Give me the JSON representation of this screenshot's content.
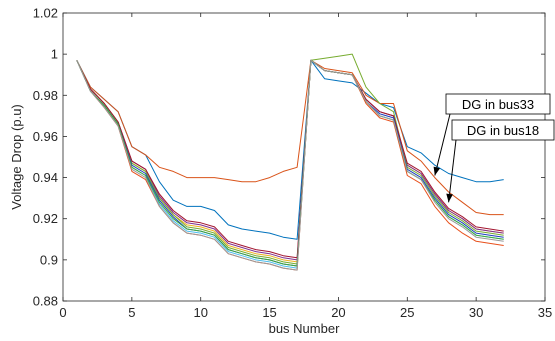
{
  "chart_data": {
    "type": "line",
    "title": "",
    "xlabel": "bus Number",
    "ylabel": "Voltage Drop (p.u)",
    "xlim": [
      0,
      35
    ],
    "ylim": [
      0.88,
      1.02
    ],
    "xticks": [
      0,
      5,
      10,
      15,
      20,
      25,
      30,
      35
    ],
    "xtick_labels": [
      "0",
      "5",
      "10",
      "15",
      "20",
      "25",
      "30",
      "35"
    ],
    "yticks": [
      0.88,
      0.9,
      0.92,
      0.94,
      0.96,
      0.98,
      1.0,
      1.02
    ],
    "ytick_labels": [
      "0.88",
      "0.9",
      "0.92",
      "0.94",
      "0.96",
      "0.98",
      "1",
      "1.02"
    ],
    "grid": false,
    "x": [
      1,
      2,
      3,
      4,
      5,
      6,
      7,
      8,
      9,
      10,
      11,
      12,
      13,
      14,
      15,
      16,
      17,
      18,
      19,
      20,
      21,
      22,
      23,
      24,
      25,
      26,
      27,
      28,
      29,
      30,
      31,
      32
    ],
    "series": [
      {
        "color": "#0072BD",
        "values": [
          0.997,
          0.984,
          0.978,
          0.972,
          0.955,
          0.951,
          0.938,
          0.929,
          0.926,
          0.926,
          0.924,
          0.917,
          0.915,
          0.914,
          0.913,
          0.911,
          0.91,
          0.997,
          0.988,
          0.987,
          0.986,
          0.981,
          0.976,
          0.974,
          0.955,
          0.952,
          0.946,
          0.942,
          0.94,
          0.938,
          0.938,
          0.939
        ]
      },
      {
        "color": "#D95319",
        "values": [
          0.997,
          0.984,
          0.978,
          0.972,
          0.955,
          0.951,
          0.945,
          0.943,
          0.94,
          0.94,
          0.94,
          0.939,
          0.938,
          0.938,
          0.94,
          0.943,
          0.945,
          0.997,
          0.993,
          0.992,
          0.991,
          0.98,
          0.976,
          0.976,
          0.953,
          0.948,
          0.94,
          0.933,
          0.928,
          0.923,
          0.922,
          0.922
        ]
      },
      {
        "color": "#EDB120",
        "values": [
          0.997,
          0.983,
          0.976,
          0.967,
          0.947,
          0.943,
          0.93,
          0.922,
          0.917,
          0.916,
          0.914,
          0.907,
          0.905,
          0.903,
          0.902,
          0.9,
          0.899,
          0.997,
          0.992,
          0.991,
          0.99,
          0.978,
          0.972,
          0.97,
          0.946,
          0.942,
          0.932,
          0.924,
          0.92,
          0.915,
          0.914,
          0.913
        ]
      },
      {
        "color": "#7E2F8E",
        "values": [
          0.997,
          0.983,
          0.976,
          0.967,
          0.948,
          0.944,
          0.931,
          0.923,
          0.918,
          0.917,
          0.915,
          0.908,
          0.906,
          0.904,
          0.903,
          0.901,
          0.9,
          0.997,
          0.992,
          0.991,
          0.99,
          0.978,
          0.972,
          0.97,
          0.946,
          0.942,
          0.932,
          0.924,
          0.92,
          0.915,
          0.914,
          0.913
        ]
      },
      {
        "color": "#77AC30",
        "values": [
          0.997,
          0.983,
          0.976,
          0.967,
          0.947,
          0.943,
          0.93,
          0.922,
          0.916,
          0.915,
          0.913,
          0.906,
          0.904,
          0.902,
          0.901,
          0.899,
          0.898,
          0.997,
          0.998,
          0.999,
          1.0,
          0.984,
          0.976,
          0.972,
          0.945,
          0.941,
          0.931,
          0.923,
          0.919,
          0.914,
          0.913,
          0.912
        ]
      },
      {
        "color": "#4DBEEE",
        "values": [
          0.997,
          0.982,
          0.975,
          0.966,
          0.945,
          0.941,
          0.927,
          0.919,
          0.914,
          0.913,
          0.911,
          0.904,
          0.902,
          0.9,
          0.899,
          0.897,
          0.896,
          0.997,
          0.992,
          0.991,
          0.99,
          0.977,
          0.97,
          0.968,
          0.943,
          0.939,
          0.929,
          0.921,
          0.917,
          0.912,
          0.911,
          0.91
        ]
      },
      {
        "color": "#A2142F",
        "values": [
          0.997,
          0.983,
          0.976,
          0.967,
          0.948,
          0.944,
          0.932,
          0.924,
          0.919,
          0.918,
          0.916,
          0.909,
          0.907,
          0.905,
          0.904,
          0.902,
          0.901,
          0.997,
          0.992,
          0.991,
          0.99,
          0.978,
          0.972,
          0.97,
          0.947,
          0.943,
          0.933,
          0.925,
          0.921,
          0.916,
          0.915,
          0.914
        ]
      },
      {
        "color": "#1F3FBF",
        "values": [
          0.997,
          0.982,
          0.975,
          0.966,
          0.946,
          0.942,
          0.929,
          0.921,
          0.915,
          0.914,
          0.912,
          0.905,
          0.903,
          0.901,
          0.9,
          0.898,
          0.897,
          0.997,
          0.992,
          0.991,
          0.99,
          0.977,
          0.971,
          0.969,
          0.944,
          0.94,
          0.93,
          0.922,
          0.918,
          0.913,
          0.912,
          0.911
        ]
      },
      {
        "color": "#E8501C",
        "values": [
          0.997,
          0.982,
          0.974,
          0.965,
          0.943,
          0.939,
          0.926,
          0.918,
          0.913,
          0.912,
          0.91,
          0.903,
          0.901,
          0.899,
          0.898,
          0.896,
          0.895,
          0.997,
          0.992,
          0.991,
          0.99,
          0.976,
          0.969,
          0.967,
          0.941,
          0.937,
          0.926,
          0.918,
          0.913,
          0.909,
          0.908,
          0.907
        ]
      },
      {
        "color": "#3CA83C",
        "values": [
          0.997,
          0.982,
          0.975,
          0.966,
          0.945,
          0.941,
          0.928,
          0.92,
          0.915,
          0.914,
          0.912,
          0.905,
          0.903,
          0.901,
          0.9,
          0.898,
          0.897,
          0.997,
          0.992,
          0.991,
          0.99,
          0.977,
          0.97,
          0.968,
          0.943,
          0.939,
          0.929,
          0.921,
          0.917,
          0.912,
          0.911,
          0.91
        ]
      },
      {
        "color": "#9A9A9A",
        "values": [
          0.997,
          0.982,
          0.974,
          0.965,
          0.944,
          0.94,
          0.926,
          0.918,
          0.913,
          0.912,
          0.91,
          0.903,
          0.901,
          0.899,
          0.898,
          0.896,
          0.895,
          0.997,
          0.992,
          0.991,
          0.99,
          0.977,
          0.97,
          0.968,
          0.943,
          0.939,
          0.928,
          0.92,
          0.916,
          0.911,
          0.91,
          0.909
        ]
      }
    ],
    "annotations": [
      {
        "text": "DG in bus33",
        "arrow_to": [
          27,
          0.941
        ]
      },
      {
        "text": "DG in bus18",
        "arrow_to": [
          28,
          0.928
        ]
      }
    ]
  }
}
